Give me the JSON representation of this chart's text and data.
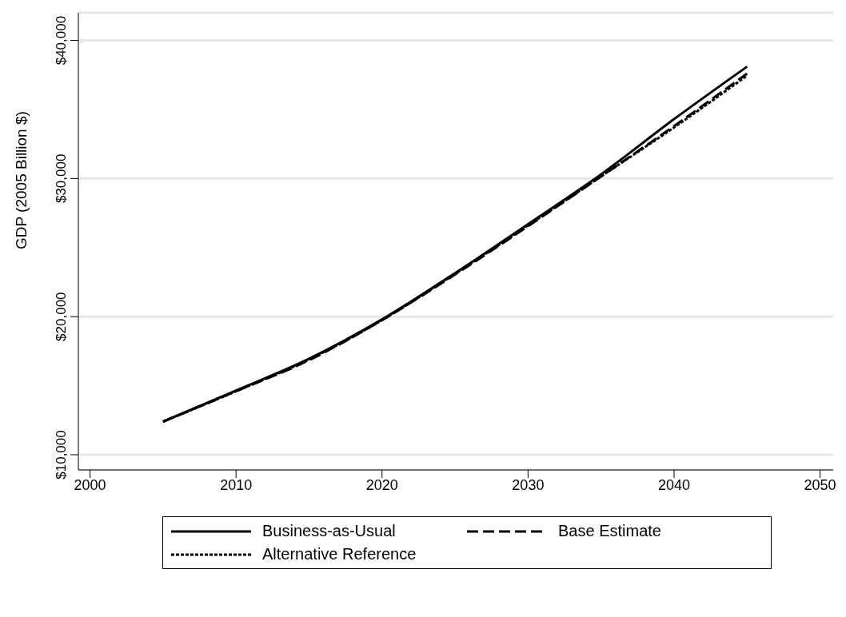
{
  "chart_data": {
    "type": "line",
    "ylabel": "GDP (2005 Billion $)",
    "x": [
      2005,
      2010,
      2015,
      2020,
      2025,
      2030,
      2035,
      2040,
      2045
    ],
    "series": [
      {
        "name": "Business-as-Usual",
        "color": "#000000",
        "line_style": "solid",
        "values": [
          12400,
          14650,
          16950,
          19800,
          23150,
          26700,
          30300,
          34300,
          38100
        ]
      },
      {
        "name": "Base Estimate",
        "color": "#000000",
        "line_style": "dashed",
        "values": [
          12400,
          14600,
          16850,
          19750,
          23050,
          26550,
          30150,
          33800,
          37600
        ]
      },
      {
        "name": "Alternative Reference",
        "color": "#000000",
        "line_style": "dotted",
        "values": [
          12400,
          14600,
          16900,
          19750,
          23100,
          26600,
          30150,
          33700,
          37450
        ]
      }
    ],
    "xlim": [
      1999.2,
      2050.9
    ],
    "xticks": [
      2000,
      2010,
      2020,
      2030,
      2040,
      2050
    ],
    "ylim": [
      8900,
      42000
    ],
    "yticks": [
      {
        "value": 10000,
        "label": "$10,000"
      },
      {
        "value": 20000,
        "label": "$20,000"
      },
      {
        "value": 30000,
        "label": "$30,000"
      },
      {
        "value": 40000,
        "label": "$40,000"
      }
    ],
    "grid": "y",
    "legend": "bottom",
    "marker": "none"
  }
}
